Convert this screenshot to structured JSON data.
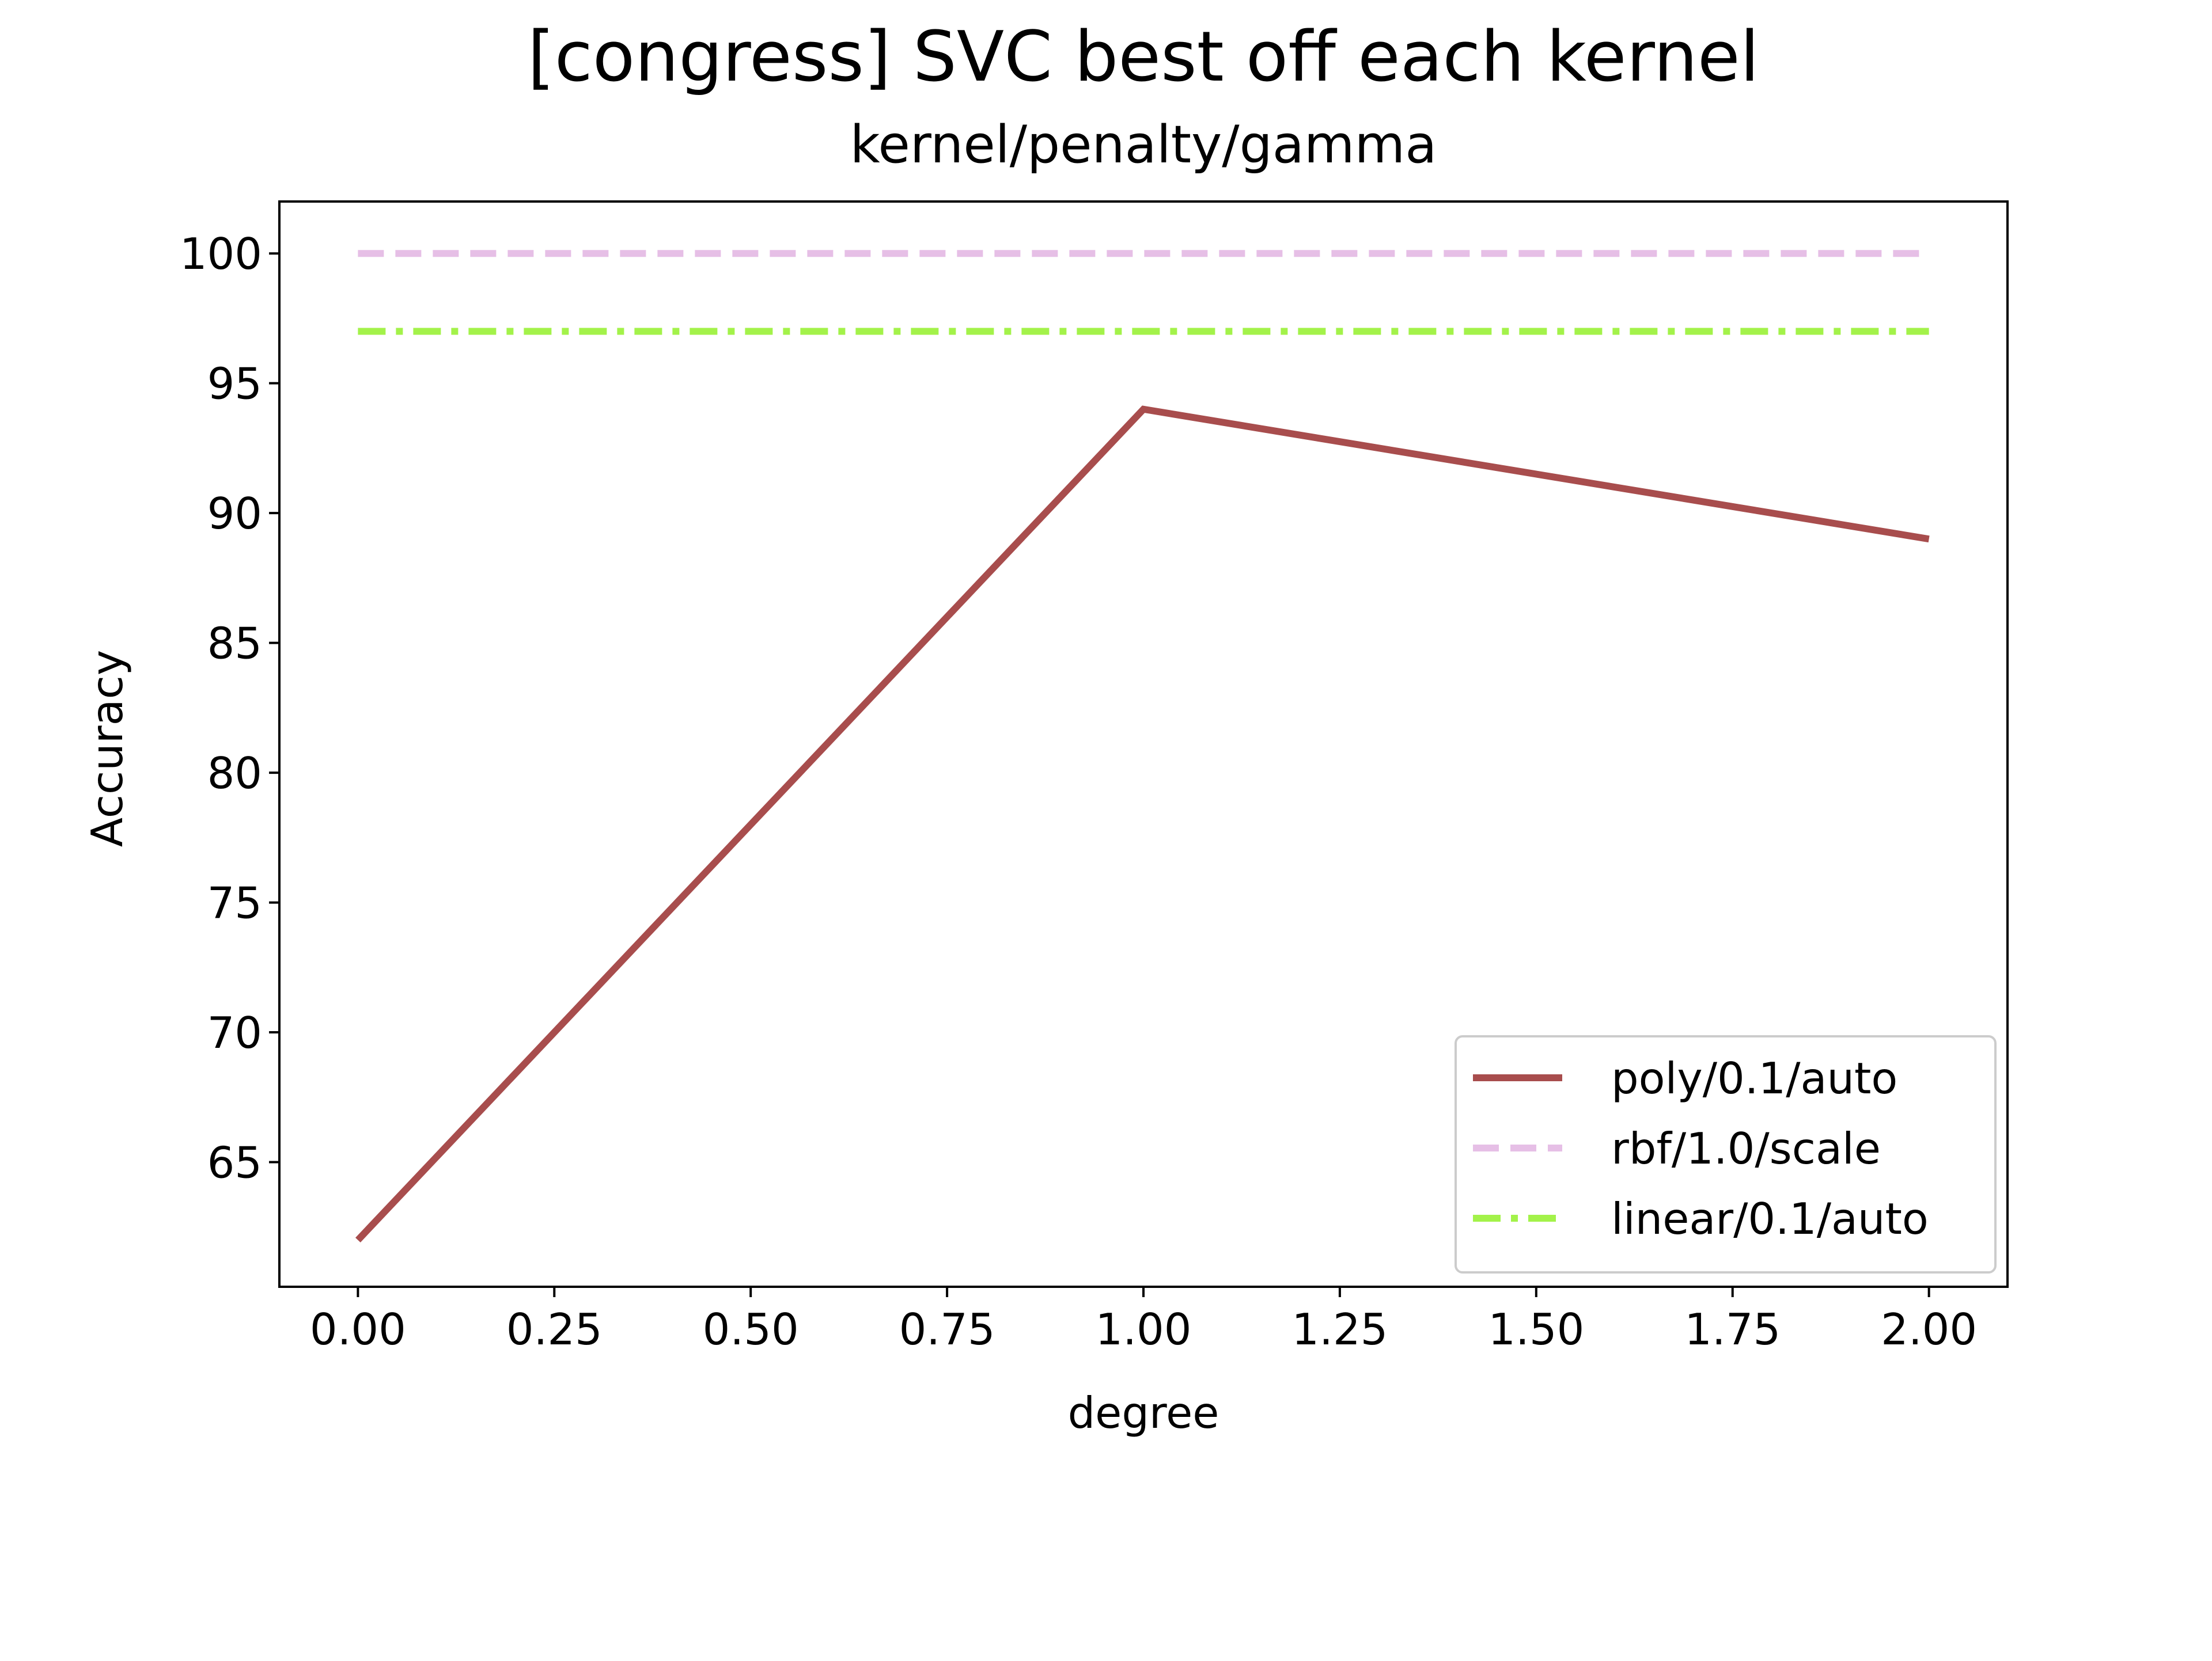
{
  "chart_data": {
    "type": "line",
    "title": "[congress] SVC best off each kernel",
    "subtitle": "kernel/penalty/gamma",
    "xlabel": "degree",
    "ylabel": "Accuracy",
    "xlim": [
      -0.1,
      2.1
    ],
    "ylim": [
      60.2,
      102
    ],
    "xticks": [
      "0.00",
      "0.25",
      "0.50",
      "0.75",
      "1.00",
      "1.25",
      "1.50",
      "1.75",
      "2.00"
    ],
    "yticks": [
      "65",
      "70",
      "75",
      "80",
      "85",
      "90",
      "95",
      "100"
    ],
    "x": [
      0,
      1,
      2
    ],
    "grid": false,
    "legend_position": "lower right",
    "series": [
      {
        "name": "poly/0.1/auto",
        "values": [
          62,
          94,
          89
        ],
        "color": "#a84d4d",
        "style": "solid"
      },
      {
        "name": "rbf/1.0/scale",
        "values": [
          100,
          100,
          100
        ],
        "color": "#e6bfe6",
        "style": "dashed"
      },
      {
        "name": "linear/0.1/auto",
        "values": [
          97,
          97,
          97
        ],
        "color": "#a3f24a",
        "style": "dashdot"
      }
    ]
  }
}
